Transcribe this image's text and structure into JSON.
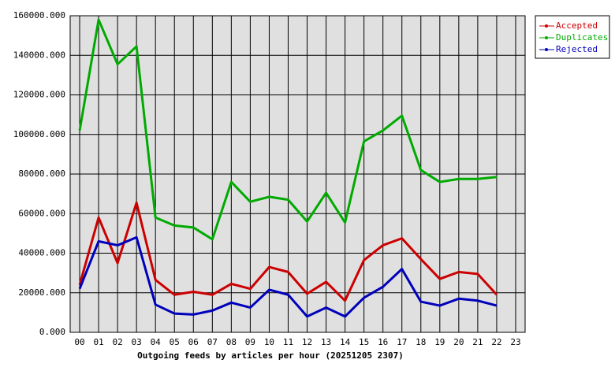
{
  "chart_data": {
    "type": "line",
    "x_label": "Outgoing feeds by articles per hour (20251205 2307)",
    "categories": [
      "00",
      "01",
      "02",
      "03",
      "04",
      "05",
      "06",
      "07",
      "08",
      "09",
      "10",
      "11",
      "12",
      "13",
      "14",
      "15",
      "16",
      "17",
      "18",
      "19",
      "20",
      "21",
      "22",
      "23"
    ],
    "series": [
      {
        "name": "Accepted",
        "color": "#cc0000",
        "values": [
          24000,
          58000,
          35000,
          65500,
          26500,
          19000,
          20500,
          19000,
          24500,
          22000,
          33000,
          30500,
          19500,
          25500,
          16000,
          36500,
          44000,
          47500,
          37000,
          27000,
          30500,
          29500,
          19000,
          null
        ]
      },
      {
        "name": "Duplicates",
        "color": "#00aa00",
        "values": [
          102000,
          158000,
          135500,
          144500,
          58000,
          54000,
          53000,
          47000,
          76000,
          66000,
          68500,
          67000,
          56000,
          70500,
          55500,
          96500,
          102000,
          109500,
          82000,
          76000,
          77500,
          77500,
          78500,
          null
        ]
      },
      {
        "name": "Rejected",
        "color": "#0000bb",
        "values": [
          22000,
          46000,
          44000,
          48000,
          14000,
          9500,
          9000,
          11000,
          15000,
          12500,
          21500,
          19000,
          8000,
          12500,
          8000,
          17500,
          23000,
          32000,
          15500,
          13500,
          17000,
          16000,
          13500,
          null
        ]
      }
    ],
    "ylim": [
      0,
      160000
    ],
    "yticks": [
      {
        "value": 0,
        "label": "0.000"
      },
      {
        "value": 20000,
        "label": "20000.000"
      },
      {
        "value": 40000,
        "label": "40000.000"
      },
      {
        "value": 60000,
        "label": "60000.000"
      },
      {
        "value": 80000,
        "label": "80000.000"
      },
      {
        "value": 100000,
        "label": "100000.000"
      },
      {
        "value": 120000,
        "label": "120000.000"
      },
      {
        "value": 140000,
        "label": "140000.000"
      },
      {
        "value": 160000,
        "label": "160000.000"
      }
    ],
    "grid": true,
    "legend": "top-right"
  }
}
